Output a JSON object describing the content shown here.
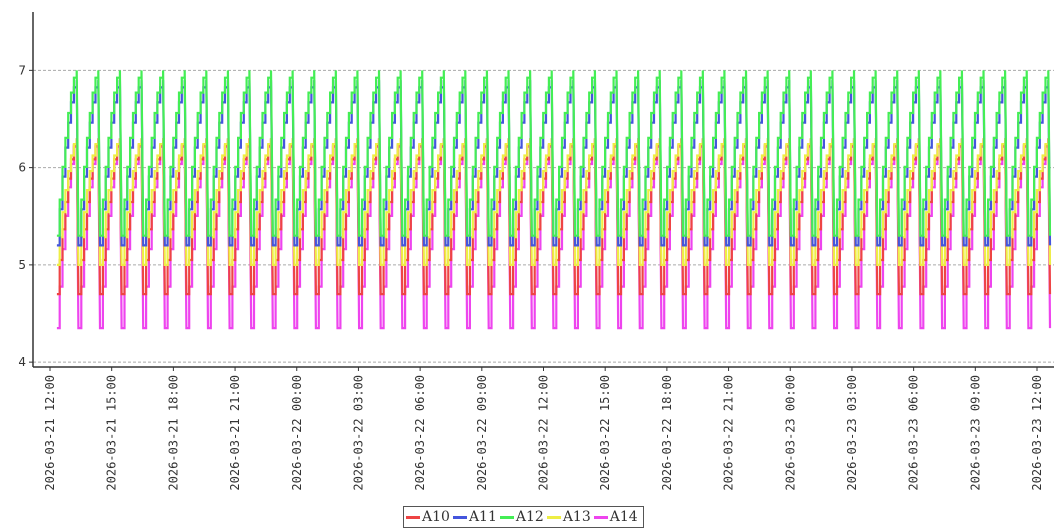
{
  "chart_data": {
    "type": "line",
    "title": "",
    "xlabel": "",
    "ylabel": "",
    "x_ticks": [
      "2026-03-21 12:00",
      "2026-03-21 15:00",
      "2026-03-21 18:00",
      "2026-03-21 21:00",
      "2026-03-22 00:00",
      "2026-03-22 03:00",
      "2026-03-22 06:00",
      "2026-03-22 09:00",
      "2026-03-22 12:00",
      "2026-03-22 15:00",
      "2026-03-22 18:00",
      "2026-03-22 21:00",
      "2026-03-23 00:00",
      "2026-03-23 03:00",
      "2026-03-23 06:00",
      "2026-03-23 09:00",
      "2026-03-23 12:00"
    ],
    "xlim": [
      "2026-03-21 12:00",
      "2026-03-23 12:00"
    ],
    "ylim": [
      3.95,
      7.6
    ],
    "y_ticks": [
      4,
      5,
      6,
      7
    ],
    "grid": "horizontal dashed",
    "legend_position": "bottom-center",
    "cycle": {
      "start": "2026-03-21 12:20",
      "period_minutes": 63,
      "count": 46,
      "shape": "sawtooth: rises stepwise from the low value to the peak, then drops sharply"
    },
    "series": [
      {
        "name": "A10",
        "color": "#ee4444",
        "low": 4.7,
        "peak": 6.3
      },
      {
        "name": "A11",
        "color": "#4455dd",
        "low": 5.2,
        "peak": 6.9
      },
      {
        "name": "A12",
        "color": "#44ee55",
        "low": 5.3,
        "peak": 7.0
      },
      {
        "name": "A13",
        "color": "#eeee44",
        "low": 5.0,
        "peak": 6.3
      },
      {
        "name": "A14",
        "color": "#ee44ee",
        "low": 4.35,
        "peak": 6.3
      }
    ]
  }
}
